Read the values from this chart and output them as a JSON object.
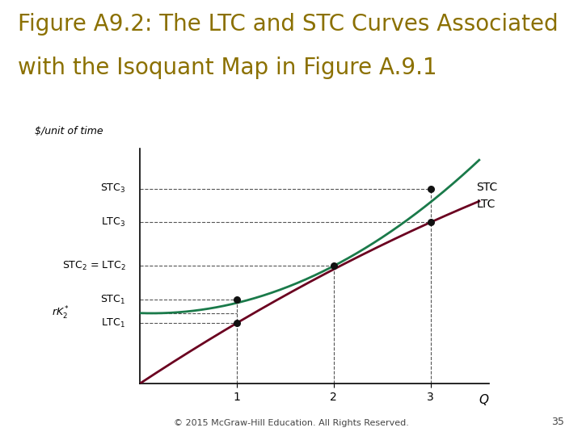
{
  "title_line1": "Figure A9.2: The LTC and STC Curves Associated",
  "title_line2": "with the Isoquant Map in Figure A.9.1",
  "title_color": "#8B7000",
  "title_fontsize": 20,
  "ylabel": "$/unit of time",
  "xlabel": "Q",
  "background_color": "#ffffff",
  "ltc_color": "#6B0020",
  "stc_color": "#1a7a4a",
  "dashed_color": "#555555",
  "dot_color": "#111111",
  "xlim": [
    0,
    3.6
  ],
  "ylim": [
    0,
    7.0
  ],
  "x_ticks": [
    1,
    2,
    3
  ],
  "y_STC3": 5.8,
  "y_LTC3": 4.8,
  "y_STC2_LTC2": 3.5,
  "y_STC1": 2.5,
  "y_rK2": 2.1,
  "y_LTC1": 1.8,
  "ltc_a": 1.9,
  "ltc_b": -0.1,
  "stc_c": 0.4,
  "stc_d": -0.1,
  "stc_e": 2.1,
  "footer": "© 2015 McGraw-Hill Education. All Rights Reserved.",
  "page_number": "35"
}
